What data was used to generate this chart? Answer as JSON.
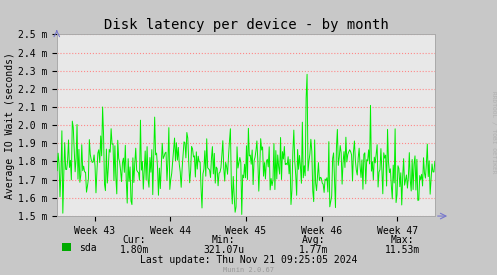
{
  "title": "Disk latency per device - by month",
  "ylabel": "Average IO Wait (seconds)",
  "background_color": "#c8c8c8",
  "plot_bg_color": "#e8e8e8",
  "grid_color": "#ff8888",
  "line_color": "#00ee00",
  "ytick_labels": [
    "1.5 m",
    "1.6 m",
    "1.7 m",
    "1.8 m",
    "1.9 m",
    "2.0 m",
    "2.1 m",
    "2.2 m",
    "2.3 m",
    "2.4 m",
    "2.5 m"
  ],
  "ytick_values": [
    0.0015,
    0.0016,
    0.0017,
    0.0018,
    0.0019,
    0.002,
    0.0021,
    0.0022,
    0.0023,
    0.0024,
    0.0025
  ],
  "xtick_labels": [
    "Week 43",
    "Week 44",
    "Week 45",
    "Week 46",
    "Week 47"
  ],
  "xtick_positions": [
    0.1,
    0.3,
    0.5,
    0.7,
    0.9
  ],
  "ylim_min": 0.0015,
  "ylim_max": 0.0025,
  "legend_label": "sda",
  "legend_color": "#00aa00",
  "stats_cur": "1.80m",
  "stats_min": "321.07u",
  "stats_avg": "1.77m",
  "stats_max": "11.53m",
  "last_update": "Last update: Thu Nov 21 09:25:05 2024",
  "munin_version": "Munin 2.0.67",
  "rrdtool_label": "RRDTOOL / TOBI OETIKER",
  "title_fontsize": 10,
  "axis_label_fontsize": 7,
  "tick_fontsize": 7,
  "stats_fontsize": 7,
  "num_points": 400
}
